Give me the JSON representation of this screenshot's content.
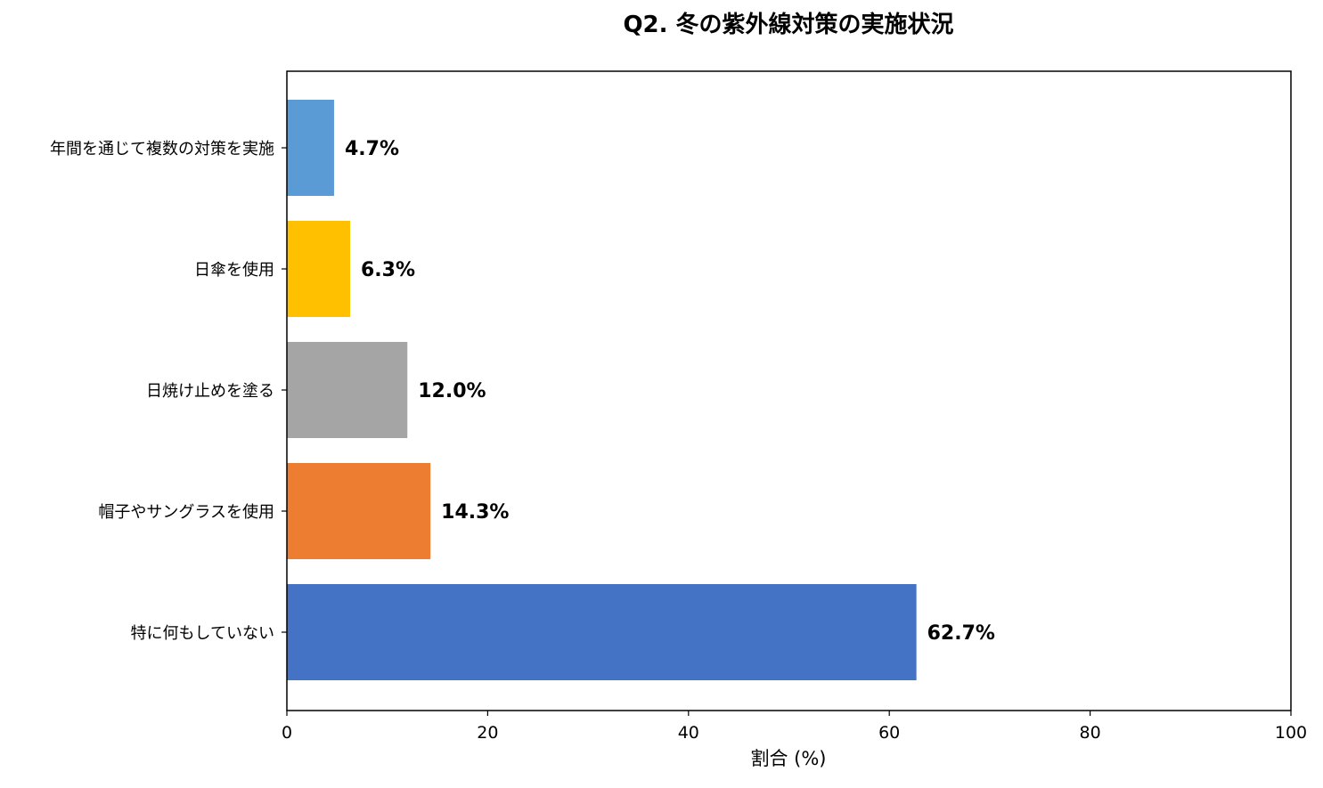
{
  "chart_data": {
    "type": "bar",
    "orientation": "horizontal",
    "title": "Q2. 冬の紫外線対策の実施状況",
    "xlabel": "割合 (%)",
    "ylabel": "",
    "xlim": [
      0,
      100
    ],
    "xticks": [
      0,
      20,
      40,
      60,
      80,
      100
    ],
    "grid": false,
    "categories": [
      "年間を通じて複数の対策を実施",
      "日傘を使用",
      "日焼け止めを塗る",
      "帽子やサングラスを使用",
      "特に何もしていない"
    ],
    "values": [
      4.7,
      6.3,
      12.0,
      14.3,
      62.7
    ],
    "value_labels": [
      "4.7%",
      "6.3%",
      "12.0%",
      "14.3%",
      "62.7%"
    ],
    "colors": [
      "#5b9bd5",
      "#ffc000",
      "#a5a5a5",
      "#ed7d31",
      "#4472c4"
    ]
  }
}
